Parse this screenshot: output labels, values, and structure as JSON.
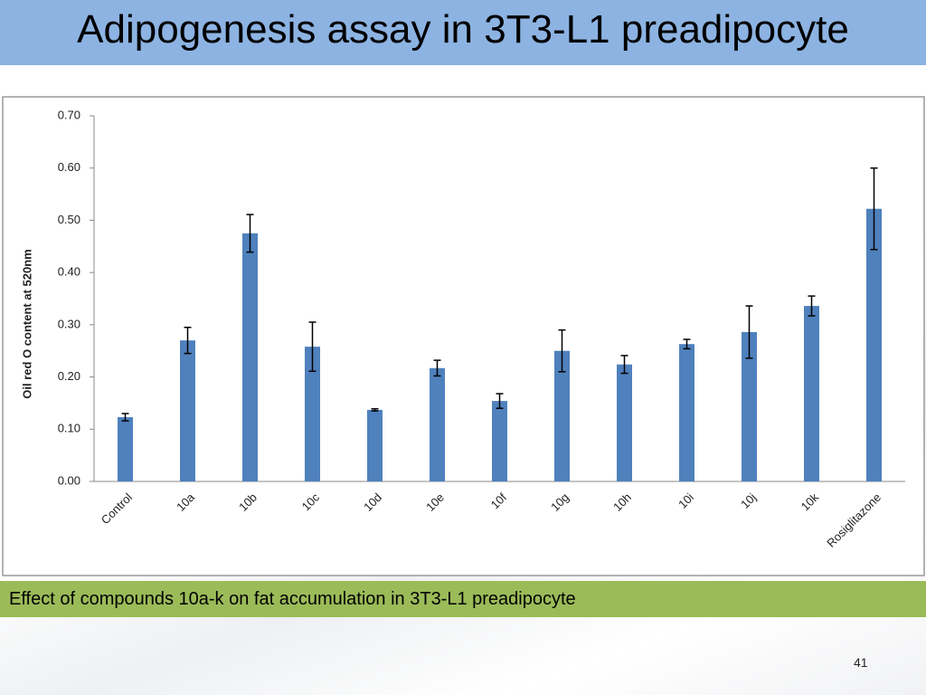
{
  "slide": {
    "title": "Adipogenesis assay in 3T3-L1 preadipocyte",
    "caption": "Effect of compounds 10a-k on fat accumulation in 3T3-L1 preadipocyte",
    "page_number": "41"
  },
  "chart_data": {
    "type": "bar",
    "y_label": "Oil red O content at 520nm",
    "categories": [
      "Control",
      "10a",
      "10b",
      "10c",
      "10d",
      "10e",
      "10f",
      "10g",
      "10h",
      "10i",
      "10j",
      "10k",
      "Rosiglitazone"
    ],
    "values": [
      0.123,
      0.27,
      0.475,
      0.258,
      0.137,
      0.217,
      0.154,
      0.25,
      0.224,
      0.263,
      0.286,
      0.336,
      0.522
    ],
    "errors": [
      0.007,
      0.025,
      0.036,
      0.047,
      0.002,
      0.015,
      0.014,
      0.04,
      0.017,
      0.009,
      0.05,
      0.019,
      0.078
    ],
    "color": "#4f81bd",
    "ylim": [
      0,
      0.7
    ],
    "yticks": [
      {
        "value": 0,
        "label": "0.00"
      },
      {
        "value": 0.1,
        "label": "0.10"
      },
      {
        "value": 0.2,
        "label": "0.20"
      },
      {
        "value": 0.3,
        "label": "0.30"
      },
      {
        "value": 0.4,
        "label": "0.40"
      },
      {
        "value": 0.5,
        "label": "0.50"
      },
      {
        "value": 0.6,
        "label": "0.60"
      },
      {
        "value": 0.7,
        "label": "0.70"
      }
    ],
    "grid": false
  }
}
